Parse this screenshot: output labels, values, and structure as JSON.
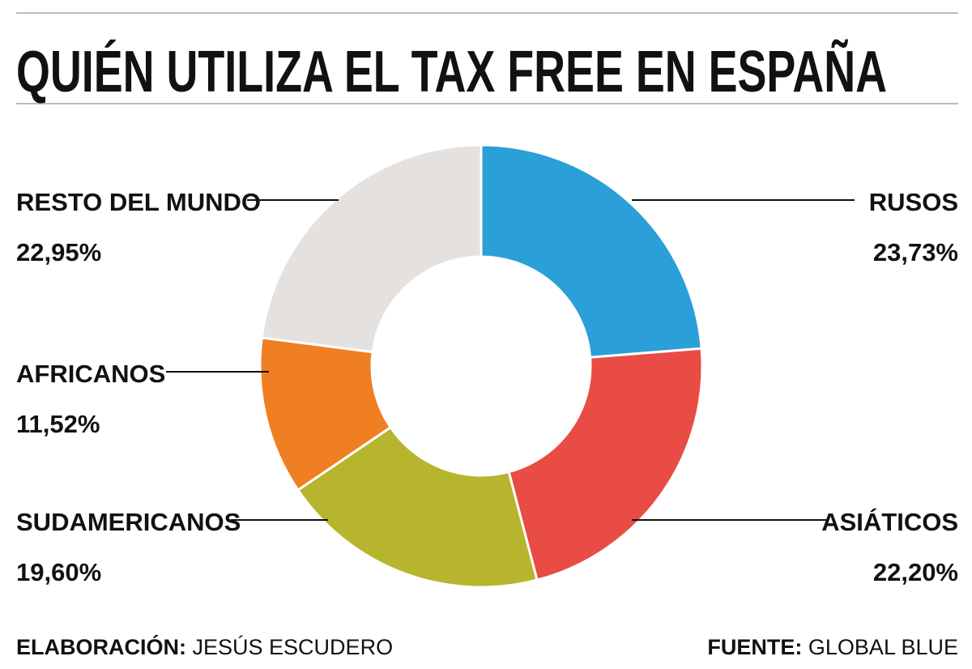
{
  "chart_data": {
    "type": "donut",
    "title": "QUIÉN UTILIZA EL TAX FREE EN ESPAÑA",
    "categories": [
      "RUSOS",
      "ASIÁTICOS",
      "SUDAMERICANOS",
      "AFRICANOS",
      "RESTO DEL MUNDO"
    ],
    "values": [
      23.73,
      22.2,
      19.6,
      11.52,
      22.95
    ],
    "value_labels": [
      "23,73%",
      "22,20%",
      "19,60%",
      "11,52%",
      "22,95%"
    ],
    "colors": [
      "#2a9fd8",
      "#e84c45",
      "#b7b42e",
      "#ef7f22",
      "#e4e1df"
    ],
    "footer": {
      "author_label": "ELABORACIÓN:",
      "author": "JESÚS ESCUDERO",
      "source_label": "FUENTE:",
      "source": "GLOBAL BLUE"
    }
  }
}
